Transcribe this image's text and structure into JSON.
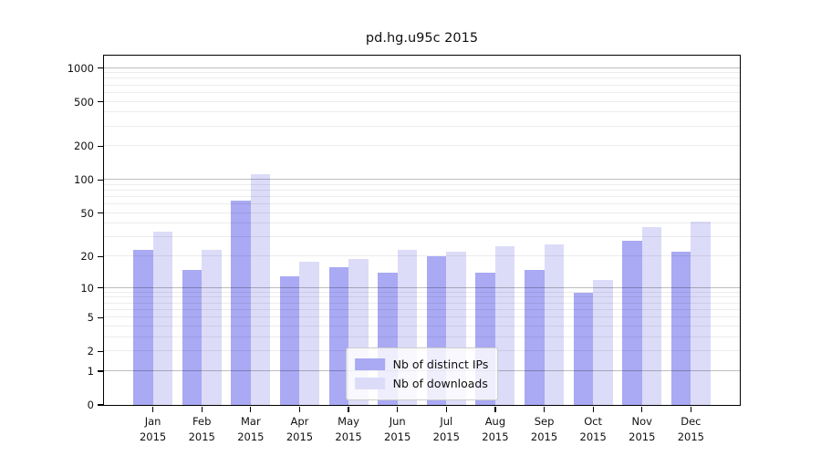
{
  "chart_data": {
    "type": "bar",
    "title": "pd.hg.u95c 2015",
    "categories": [
      "Jan",
      "Feb",
      "Mar",
      "Apr",
      "May",
      "Jun",
      "Jul",
      "Aug",
      "Sep",
      "Oct",
      "Nov",
      "Dec"
    ],
    "year_label": "2015",
    "series": [
      {
        "name": "Nb of distinct IPs",
        "color": "#a9a9f4",
        "values": [
          23,
          15,
          65,
          13,
          16,
          14,
          20,
          14,
          15,
          9,
          28,
          22
        ]
      },
      {
        "name": "Nb of downloads",
        "color": "#dcdcf8",
        "values": [
          34,
          23,
          112,
          18,
          19,
          23,
          22,
          25,
          26,
          12,
          37,
          42
        ]
      }
    ],
    "yticks": [
      0,
      1,
      2,
      5,
      10,
      20,
      50,
      100,
      200,
      500,
      1000
    ],
    "ylim": [
      0,
      1285
    ],
    "yscale": "log10(1+v)",
    "grid": true,
    "legend_position": "lower center",
    "colors": {
      "major_grid": "#bcbcbc",
      "minor_grid": "#ededed",
      "spine": "#000000"
    }
  }
}
